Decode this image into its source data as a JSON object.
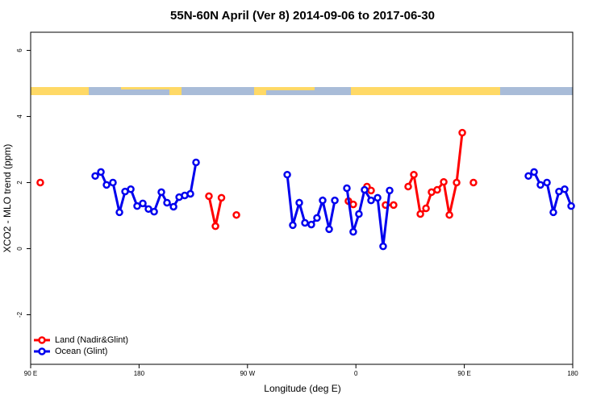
{
  "chart_data": {
    "type": "line",
    "title": "55N-60N April (Ver 8)   2014-09-06 to 2017-06-30",
    "x_label": "Longitude (deg E)",
    "y_label": "XCO2 - MLO trend (ppm)",
    "xlim": [
      90,
      540
    ],
    "ylim": [
      -3.5,
      6.55
    ],
    "xticks": [
      {
        "value": 90,
        "label": "90 E"
      },
      180,
      {
        "value": 270,
        "label": "90 W"
      },
      {
        "value": 360,
        "label": "0"
      },
      {
        "value": 450,
        "label": "90 E"
      },
      {
        "value": 540,
        "label": "180"
      }
    ],
    "yticks": [
      -2,
      0,
      2,
      4,
      6
    ],
    "legend": "bottom-left",
    "series": [
      {
        "name": "Land (Nadir&Glint)",
        "color": "#ff0000",
        "x": [
          98,
          null,
          238,
          243.4,
          248.4,
          null,
          260.8,
          null,
          353.8,
          357.8,
          null,
          369.2,
          372.6,
          null,
          384.6,
          391.3,
          null,
          403.4,
          408.1,
          413.5,
          418.2,
          422.8,
          427.5,
          432.9,
          437.6,
          443.6,
          448.3,
          null,
          457.6
        ],
        "values": [
          2.0,
          null,
          1.59,
          0.68,
          1.54,
          null,
          1.02,
          null,
          1.44,
          1.34,
          null,
          1.88,
          1.76,
          null,
          1.32,
          1.32,
          null,
          1.88,
          2.24,
          1.05,
          1.22,
          1.71,
          1.78,
          2.02,
          1.02,
          2.0,
          3.51,
          null,
          2.0
        ]
      },
      {
        "name": "Ocean (Glint)",
        "color": "#0000ee",
        "x": [
          143.6,
          148.3,
          153.0,
          158.3,
          163.7,
          168.4,
          173.1,
          178.4,
          183.1,
          187.8,
          192.5,
          198.5,
          203.2,
          208.6,
          213.3,
          217.9,
          222.6,
          227.3,
          null,
          303.0,
          307.6,
          313.0,
          317.7,
          323.0,
          327.7,
          332.4,
          337.8,
          342.5,
          null,
          352.5,
          357.8,
          362.5,
          367.2,
          372.6,
          378.0,
          382.6,
          388.0,
          null,
          503.2,
          507.9,
          513.2,
          518.6,
          523.9,
          528.6,
          533.3,
          538.7
        ],
        "values": [
          2.2,
          2.32,
          1.93,
          2.0,
          1.1,
          1.73,
          1.8,
          1.29,
          1.37,
          1.2,
          1.12,
          1.71,
          1.39,
          1.27,
          1.56,
          1.61,
          1.66,
          2.61,
          null,
          2.24,
          0.71,
          1.39,
          0.78,
          0.73,
          0.93,
          1.46,
          0.59,
          1.46,
          null,
          1.83,
          0.51,
          1.05,
          1.78,
          1.46,
          1.54,
          0.07,
          1.76,
          null,
          2.2,
          2.32,
          1.93,
          2.0,
          1.1,
          1.73,
          1.8,
          1.29
        ]
      }
    ]
  }
}
